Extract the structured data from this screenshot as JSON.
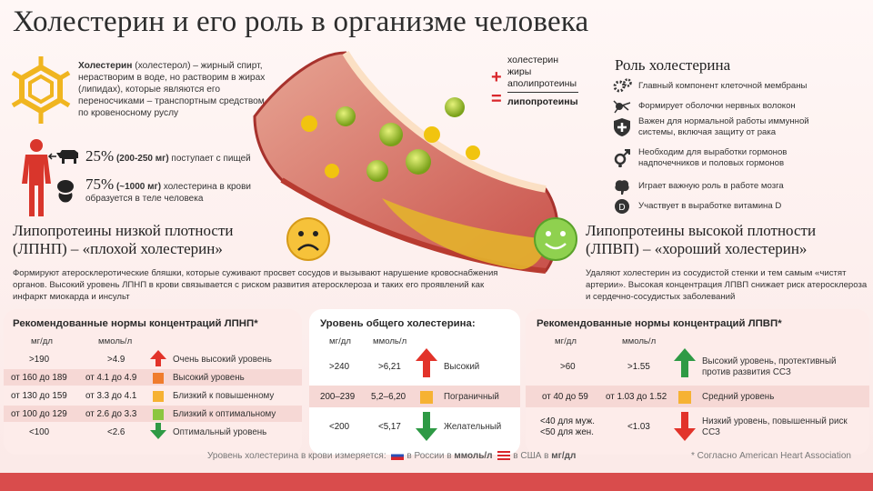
{
  "title": "Холестерин и его роль в организме человека",
  "intro": {
    "term": "Холестерин",
    "text": " (холестерол) – жирный спирт, нерастворим в воде, но растворим в жирах (липидах), которые являются его переносчиками – транспортным средством по кровеносному руслу"
  },
  "stats": [
    {
      "big": "25%",
      "bold": "(200-250 мг)",
      "text": " поступает с пищей"
    },
    {
      "big": "75%",
      "bold": "(~1000 мг)",
      "text": " холестерина в крови образуется в теле человека"
    }
  ],
  "formula": {
    "items": [
      "холестерин",
      "жиры",
      "аполипротеины"
    ],
    "result": "липопротеины",
    "plus": "+",
    "equals": "="
  },
  "ldl": {
    "heading": "Липопротеины низкой плотности (ЛПНП) – «плохой холестерин»",
    "desc": "Формируют атеросклеротические бляшки, которые суживают просвет сосудов и вызывают нарушение кровоснабжения органов. Высокий уровень ЛПНП в крови связывается с риском развития атеросклероза и таких его проявлений как инфаркт миокарда и инсульт"
  },
  "hdl": {
    "heading": "Липопротеины высокой плотности (ЛПВП) – «хороший холестерин»",
    "desc": "Удаляют холестерин из сосудистой стенки и тем самым «чистят артерии». Высокая концентрация ЛПВП снижает риск атеросклероза и сердечно-сосудистых заболеваний"
  },
  "roles": {
    "title": "Роль холестерина",
    "items": [
      {
        "icon": "gears-icon",
        "text": "Главный компонент клеточной мембраны"
      },
      {
        "icon": "nerve-cell-icon",
        "text": "Формирует оболочки нервных волокон"
      },
      {
        "icon": "shield-icon",
        "text": "Важен для нормальной работы иммунной системы, включая защиту от рака"
      },
      {
        "icon": "gender-icon",
        "text": "Необходим для выработки гормонов надпочечников и половых гормонов"
      },
      {
        "icon": "brain-icon",
        "text": "Играет важную роль в работе мозга"
      },
      {
        "icon": "vitamin-d-icon",
        "text": "Участвует в выработке витамина D"
      }
    ]
  },
  "ldl_table": {
    "title": "Рекомендованные нормы концентраций ЛПНП*",
    "col_mg": "мг/дл",
    "col_mmol": "ммоль/л",
    "rows": [
      {
        "mg": ">190",
        "mmol": ">4.9",
        "label": "Очень высокий уровень",
        "color": "#e2332a"
      },
      {
        "mg": "от 160 до 189",
        "mmol": "от 4.1 до 4.9",
        "label": "Высокий уровень",
        "color": "#ef7c2d"
      },
      {
        "mg": "от 130 до 159",
        "mmol": "от 3.3 до 4.1",
        "label": "Близкий к повышенному",
        "color": "#f6b233"
      },
      {
        "mg": "от 100 до 129",
        "mmol": "от 2.6 до 3.3",
        "label": "Близкий к оптимальному",
        "color": "#8cc63f"
      },
      {
        "mg": "<100",
        "mmol": "<2.6",
        "label": "Оптимальный уровень",
        "color": "#2e9a45"
      }
    ]
  },
  "total_table": {
    "title": "Уровень общего холестерина:",
    "col_mg": "мг/дл",
    "col_mmol": "ммоль/л",
    "rows": [
      {
        "mg": ">240",
        "mmol": ">6,21",
        "label": "Высокий"
      },
      {
        "mg": "200–239",
        "mmol": "5,2–6,20",
        "label": "Пограничный"
      },
      {
        "mg": "<200",
        "mmol": "<5,17",
        "label": "Желательный"
      }
    ]
  },
  "hdl_table": {
    "title": "Рекомендованные нормы концентраций ЛПВП*",
    "col_mg": "мг/дл",
    "col_mmol": "ммоль/л",
    "rows": [
      {
        "mg": ">60",
        "mmol": ">1.55",
        "label": "Высокий уровень, протективный против развития ССЗ"
      },
      {
        "mg": "от 40 до 59",
        "mmol": "от 1.03 до 1.52",
        "label": "Средний уровень"
      },
      {
        "mg_a": "<40 для муж.",
        "mg_b": "<50 для жен.",
        "mmol": "<1.03",
        "label": "Низкий уровень, повышенный риск ССЗ"
      }
    ]
  },
  "footer": {
    "measure_prefix": "Уровень холестерина в крови измеряется:",
    "russia": "в России в ",
    "russia_unit": "ммоль/л",
    "usa": "в США в ",
    "usa_unit": "мг/дл",
    "source": "* Согласно American Heart Association"
  },
  "colors": {
    "red": "#e2332a",
    "green": "#2e9a45",
    "orange": "#f6b233",
    "footer": "#d94c4c"
  }
}
